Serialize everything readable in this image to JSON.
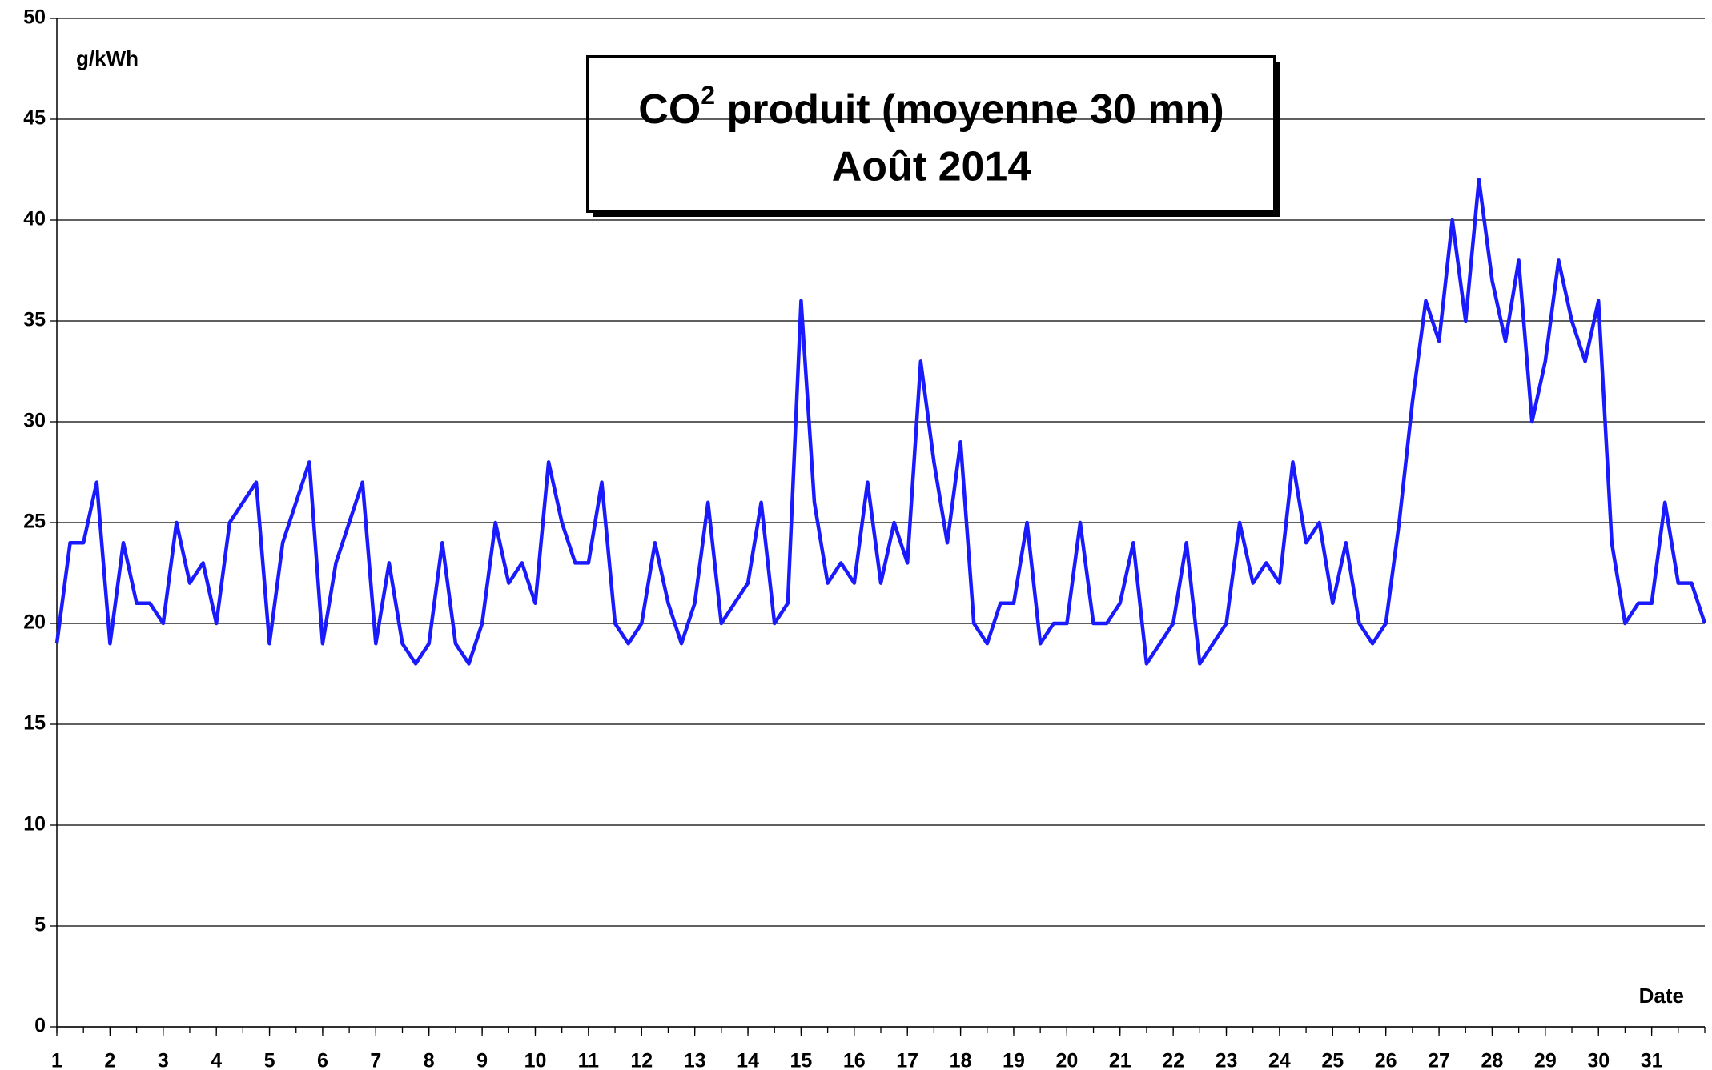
{
  "chart_data": {
    "type": "line",
    "title": "CO",
    "title_superscript": "2",
    "title_rest": " produit (moyenne 30 mn)",
    "subtitle": "Août 2014",
    "y_label": "g/kWh",
    "x_label": "Date",
    "xlim": [
      1,
      32
    ],
    "xticks": [
      1,
      2,
      3,
      4,
      5,
      6,
      7,
      8,
      9,
      10,
      11,
      12,
      13,
      14,
      15,
      16,
      17,
      18,
      19,
      20,
      21,
      22,
      23,
      24,
      25,
      26,
      27,
      28,
      29,
      30,
      31
    ],
    "ylim": [
      0,
      50
    ],
    "yticks": [
      0,
      5,
      10,
      15,
      20,
      25,
      30,
      35,
      40,
      45,
      50
    ],
    "grid": true,
    "x": [
      1,
      1.25,
      1.5,
      1.75,
      2,
      2.25,
      2.5,
      2.75,
      3,
      3.25,
      3.5,
      3.75,
      4,
      4.25,
      4.5,
      4.75,
      5,
      5.25,
      5.5,
      5.75,
      6,
      6.25,
      6.5,
      6.75,
      7,
      7.25,
      7.5,
      7.75,
      8,
      8.25,
      8.5,
      8.75,
      9,
      9.25,
      9.5,
      9.75,
      10,
      10.25,
      10.5,
      10.75,
      11,
      11.25,
      11.5,
      11.75,
      12,
      12.25,
      12.5,
      12.75,
      13,
      13.25,
      13.5,
      13.75,
      14,
      14.25,
      14.5,
      14.75,
      15,
      15.25,
      15.5,
      15.75,
      16,
      16.25,
      16.5,
      16.75,
      17,
      17.25,
      17.5,
      17.75,
      18,
      18.25,
      18.5,
      18.75,
      19,
      19.25,
      19.5,
      19.75,
      20,
      20.25,
      20.5,
      20.75,
      21,
      21.25,
      21.5,
      21.75,
      22,
      22.25,
      22.5,
      22.75,
      23,
      23.25,
      23.5,
      23.75,
      24,
      24.25,
      24.5,
      24.75,
      25,
      25.25,
      25.5,
      25.75,
      26,
      26.25,
      26.5,
      26.75,
      27,
      27.25,
      27.5,
      27.75,
      28,
      28.25,
      28.5,
      28.75,
      29,
      29.25,
      29.5,
      29.75,
      30,
      30.25,
      30.5,
      30.75,
      31,
      31.25,
      31.5,
      31.75,
      32
    ],
    "series": [
      {
        "name": "CO2",
        "color": "#1a1aff",
        "values": [
          19,
          24,
          24,
          27,
          19,
          24,
          21,
          21,
          20,
          25,
          22,
          23,
          20,
          25,
          26,
          27,
          19,
          24,
          26,
          28,
          19,
          23,
          25,
          27,
          19,
          23,
          19,
          18,
          19,
          24,
          19,
          18,
          20,
          25,
          22,
          23,
          21,
          28,
          25,
          23,
          23,
          27,
          20,
          19,
          20,
          24,
          21,
          19,
          21,
          26,
          20,
          21,
          22,
          26,
          20,
          21,
          36,
          26,
          22,
          23,
          22,
          27,
          22,
          25,
          23,
          33,
          28,
          24,
          29,
          20,
          19,
          21,
          21,
          25,
          19,
          20,
          20,
          25,
          20,
          20,
          21,
          24,
          18,
          19,
          20,
          24,
          18,
          19,
          20,
          25,
          22,
          23,
          22,
          28,
          24,
          25,
          21,
          24,
          20,
          19,
          20,
          25,
          31,
          36,
          34,
          40,
          35,
          42,
          37,
          34,
          38,
          30,
          33,
          38,
          35,
          33,
          36,
          24,
          20,
          21,
          21,
          26,
          22,
          22,
          20
        ]
      }
    ]
  }
}
